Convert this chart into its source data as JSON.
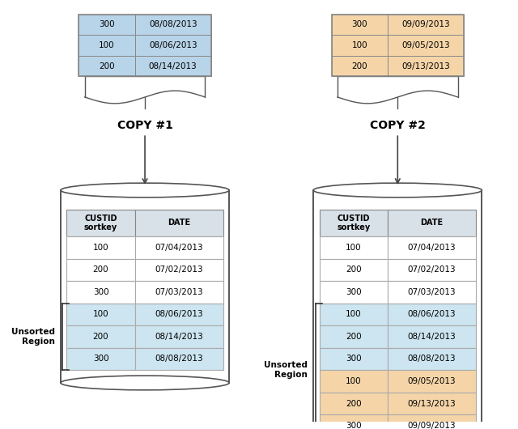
{
  "copy1_table": {
    "rows": [
      [
        "300",
        "08/08/2013"
      ],
      [
        "100",
        "08/06/2013"
      ],
      [
        "200",
        "08/14/2013"
      ]
    ],
    "row_color": "#b8d4e8",
    "border_color": "#888888"
  },
  "copy2_table": {
    "rows": [
      [
        "300",
        "09/09/2013"
      ],
      [
        "100",
        "09/05/2013"
      ],
      [
        "200",
        "09/13/2013"
      ]
    ],
    "row_color": "#f5d5a8",
    "border_color": "#888888"
  },
  "cylinder1": {
    "table_header": [
      "CUSTID\nsortkey",
      "DATE"
    ],
    "table_rows": [
      [
        "100",
        "07/04/2013",
        "white"
      ],
      [
        "200",
        "07/02/2013",
        "white"
      ],
      [
        "300",
        "07/03/2013",
        "white"
      ],
      [
        "100",
        "08/06/2013",
        "#cce5f0"
      ],
      [
        "200",
        "08/14/2013",
        "#cce5f0"
      ],
      [
        "300",
        "08/08/2013",
        "#cce5f0"
      ]
    ],
    "unsorted_rows": [
      3,
      4,
      5
    ],
    "label": "COPY #1"
  },
  "cylinder2": {
    "table_header": [
      "CUSTID\nsortkey",
      "DATE"
    ],
    "table_rows": [
      [
        "100",
        "07/04/2013",
        "white"
      ],
      [
        "200",
        "07/02/2013",
        "white"
      ],
      [
        "300",
        "07/03/2013",
        "white"
      ],
      [
        "100",
        "08/06/2013",
        "#cce5f0"
      ],
      [
        "200",
        "08/14/2013",
        "#cce5f0"
      ],
      [
        "300",
        "08/08/2013",
        "#cce5f0"
      ],
      [
        "100",
        "09/05/2013",
        "#f5d5a8"
      ],
      [
        "200",
        "09/13/2013",
        "#f5d5a8"
      ],
      [
        "300",
        "09/09/2013",
        "#f5d5a8"
      ]
    ],
    "unsorted_rows": [
      3,
      4,
      5,
      6,
      7,
      8
    ],
    "label": "COPY #2"
  },
  "bg_color": "#ffffff",
  "cylinder_color": "#ffffff",
  "cylinder_edge": "#555555",
  "header_bg": "#d8e0e8",
  "header_text_color": "#000000"
}
